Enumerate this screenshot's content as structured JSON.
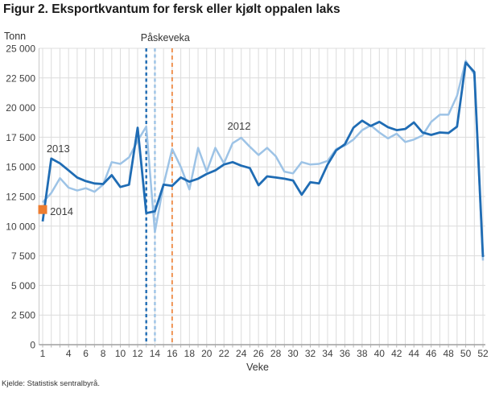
{
  "title": "Figur 2. Eksportkvantum for fersk eller kjølt oppalen laks",
  "source": "Kjelde: Statistisk sentralbyrå.",
  "chart_data": {
    "type": "line",
    "title": "Figur 2. Eksportkvantum for fersk eller kjølt oppalen laks",
    "unit_label": "Tonn",
    "xlabel": "Veke",
    "annotation": "Påskeveka",
    "ylim": [
      0,
      25000
    ],
    "ytick_step": 2500,
    "ytick_labels": [
      "0",
      "2 500",
      "5 000",
      "7 500",
      "10 000",
      "12 500",
      "15 000",
      "17 500",
      "20 000",
      "22 500",
      "25 000"
    ],
    "xticks": [
      1,
      4,
      6,
      8,
      10,
      12,
      14,
      16,
      18,
      20,
      22,
      24,
      26,
      28,
      30,
      32,
      34,
      36,
      38,
      40,
      42,
      44,
      46,
      48,
      50,
      52
    ],
    "weeks": 52,
    "grid": true,
    "colors": {
      "y2013": "#1f6cb4",
      "y2012": "#9dc3e6",
      "y2014": "#ed7d31",
      "gridline": "#dcdcdc",
      "axis": "#8c8c8c",
      "left_axis": "#c8c8c8",
      "tick_text": "#404040",
      "label_text": "#333333"
    },
    "series": [
      {
        "name": "2012",
        "color": "#9dc3e6",
        "width": 2.5,
        "values": [
          12000,
          12800,
          14050,
          13250,
          13000,
          13200,
          12900,
          13500,
          15400,
          15250,
          15800,
          17200,
          18400,
          9500,
          13500,
          16500,
          15000,
          13100,
          16600,
          14600,
          16600,
          15300,
          17000,
          17450,
          16700,
          16000,
          16600,
          15900,
          14600,
          14450,
          15400,
          15200,
          15250,
          15500,
          16500,
          16800,
          17300,
          18100,
          18500,
          17900,
          17400,
          17800,
          17100,
          17300,
          17650,
          18800,
          19400,
          19400,
          21000,
          23950,
          22800,
          7100
        ]
      },
      {
        "name": "2013",
        "color": "#1f6cb4",
        "width": 2.8,
        "values": [
          10400,
          15700,
          15300,
          14700,
          14100,
          13800,
          13600,
          13550,
          14300,
          13300,
          13500,
          18300,
          11100,
          11250,
          13500,
          13400,
          14100,
          13750,
          14000,
          14400,
          14700,
          15200,
          15400,
          15100,
          14900,
          13450,
          14200,
          14100,
          14000,
          13850,
          12650,
          13700,
          13600,
          15200,
          16400,
          16900,
          18300,
          18900,
          18450,
          18800,
          18350,
          18100,
          18200,
          18750,
          17900,
          17700,
          17900,
          17850,
          18400,
          23800,
          23000,
          7400
        ]
      },
      {
        "name": "2014",
        "color": "#ed7d31",
        "marker": "square",
        "marker_size": 11,
        "values": [
          11400
        ]
      }
    ],
    "easter_lines": [
      {
        "year": "2013",
        "week": 13,
        "color": "#1f6cb4",
        "width": 2.4,
        "dash": "4,3.5"
      },
      {
        "year": "2012",
        "week": 14,
        "color": "#9dc3e6",
        "width": 2.4,
        "dash": "4,3.5"
      },
      {
        "year": "2014",
        "week": 16,
        "color": "#ed7d31",
        "width": 1.6,
        "dash": "5,4"
      }
    ],
    "labels": [
      {
        "text": "2013",
        "week": 1.45,
        "value": 16250
      },
      {
        "text": "2012",
        "week": 22.4,
        "value": 18150
      },
      {
        "text": "2014",
        "week": 1.85,
        "value": 10950
      }
    ]
  }
}
